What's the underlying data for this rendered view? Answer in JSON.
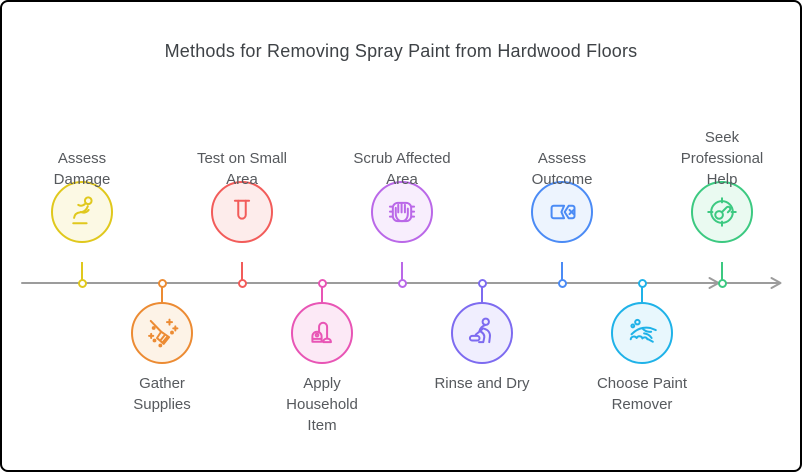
{
  "title": "Methods for Removing Spray Paint from Hardwood Floors",
  "diagram": {
    "type": "timeline",
    "axis_color": "#9c9c9c",
    "text_color": "#56595d",
    "steps": [
      {
        "label": "Assess Damage",
        "lines": [
          "Assess",
          "Damage"
        ],
        "side": "above",
        "icon": "slip-fall-icon",
        "color": "#e0c81d",
        "fill": "#fcf9e4"
      },
      {
        "label": "Gather Supplies",
        "lines": [
          "Gather",
          "Supplies"
        ],
        "side": "below",
        "icon": "broom-sweep-icon",
        "color": "#ec8b33",
        "fill": "#fdf3e7"
      },
      {
        "label": "Test on Small Area",
        "lines": [
          "Test on Small",
          "Area"
        ],
        "side": "above",
        "icon": "test-tube-icon",
        "color": "#f25c5a",
        "fill": "#fdeceb"
      },
      {
        "label": "Apply Household Item",
        "lines": [
          "Apply",
          "Household",
          "Item"
        ],
        "side": "below",
        "icon": "vacuum-cleaner-icon",
        "color": "#e855b5",
        "fill": "#fce9f6"
      },
      {
        "label": "Scrub Affected Area",
        "lines": [
          "Scrub Affected",
          "Area"
        ],
        "side": "above",
        "icon": "scrub-hand-icon",
        "color": "#ba68e8",
        "fill": "#f8eefd"
      },
      {
        "label": "Rinse and Dry",
        "lines": [
          "Rinse and Dry"
        ],
        "side": "below",
        "icon": "mop-person-icon",
        "color": "#7d6bf0",
        "fill": "#f0eefe"
      },
      {
        "label": "Assess Outcome",
        "lines": [
          "Assess",
          "Outcome"
        ],
        "side": "above",
        "icon": "label-remove-icon",
        "color": "#4b8bf5",
        "fill": "#edf4fe"
      },
      {
        "label": "Choose Paint Remover",
        "lines": [
          "Choose Paint",
          "Remover"
        ],
        "side": "below",
        "icon": "paint-splash-icon",
        "color": "#1fb2e8",
        "fill": "#e8f7fd"
      },
      {
        "label": "Seek Professional Help",
        "lines": [
          "Seek",
          "Professional",
          "Help"
        ],
        "side": "above",
        "icon": "target-gauge-icon",
        "color": "#3cc981",
        "fill": "#eafaf1"
      }
    ]
  }
}
